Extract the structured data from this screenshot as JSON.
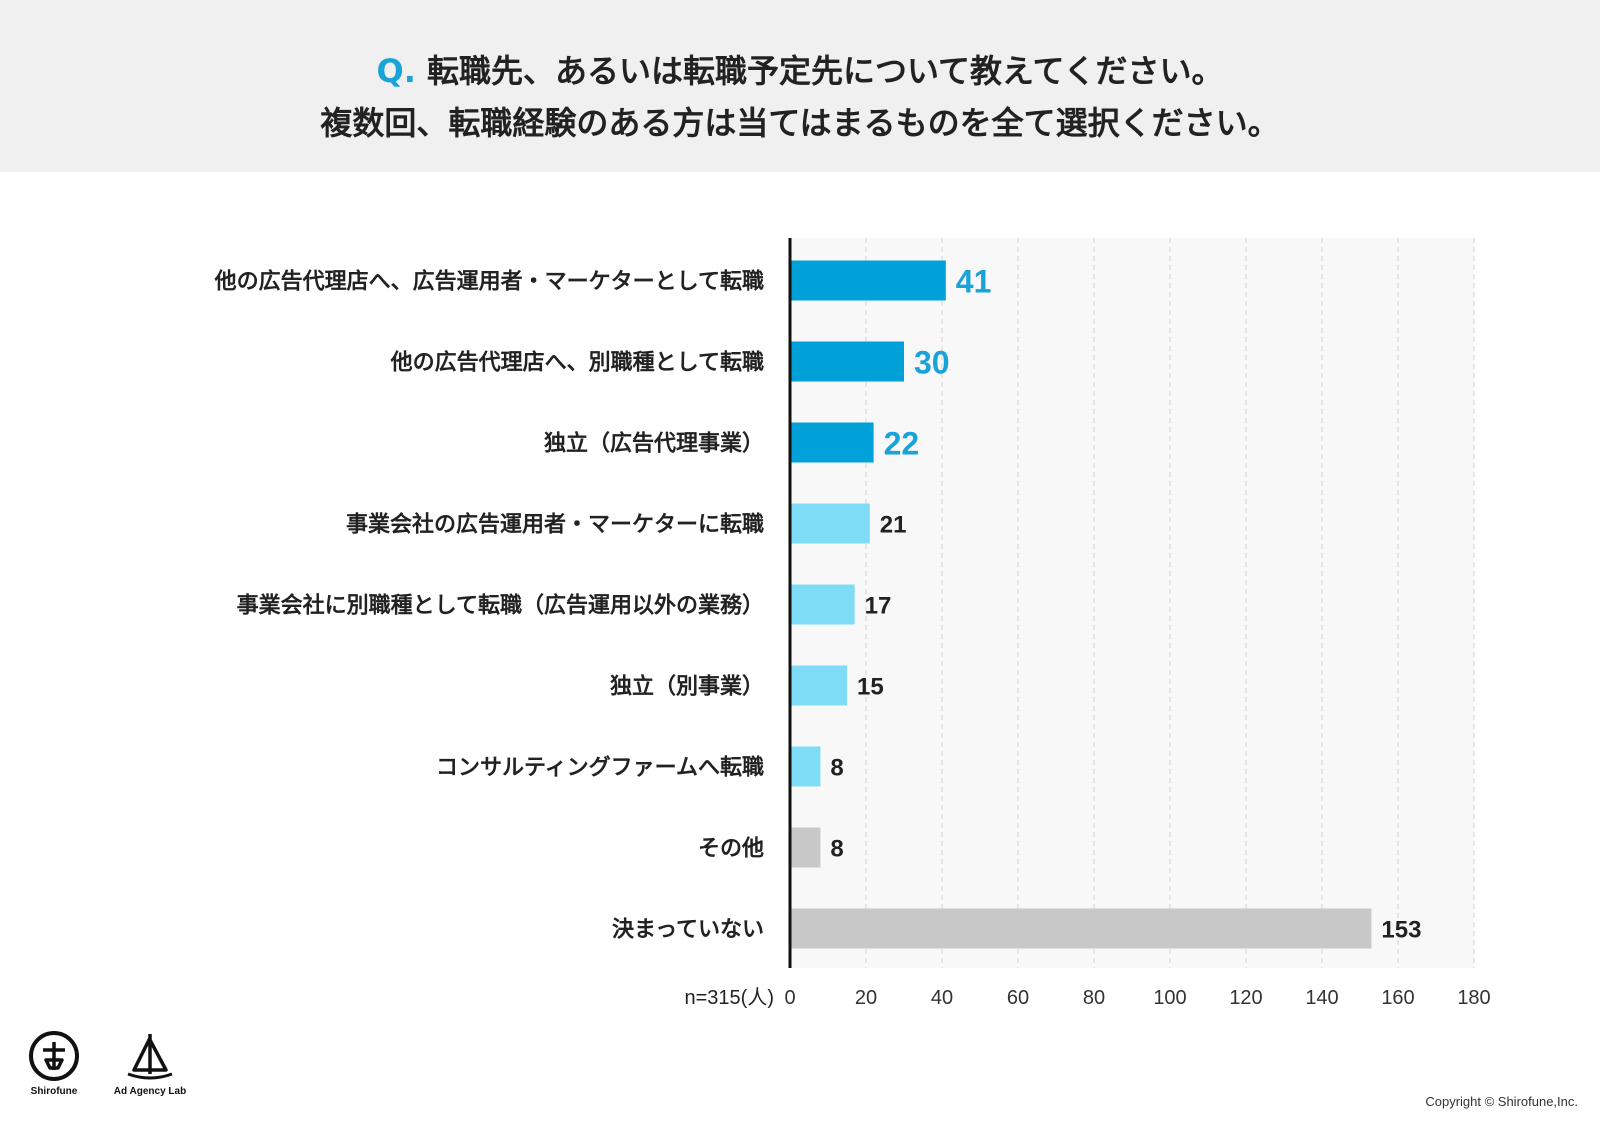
{
  "header": {
    "q_prefix": "Q.",
    "line1": "転職先、あるいは転職予定先について教えてください。",
    "line2": "複数回、転職経験のある方は当てはまるものを全て選択ください。"
  },
  "chart_data": {
    "type": "bar",
    "orientation": "horizontal",
    "categories": [
      "他の広告代理店へ、広告運用者・マーケターとして転職",
      "他の広告代理店へ、別職種として転職",
      "独立（広告代理事業）",
      "事業会社の広告運用者・マーケターに転職",
      "事業会社に別職種として転職（広告運用以外の業務）",
      "独立（別事業）",
      "コンサルティングファームへ転職",
      "その他",
      "決まっていない"
    ],
    "values": [
      41,
      30,
      22,
      21,
      17,
      15,
      8,
      8,
      153
    ],
    "bar_colors": [
      "#00a0d9",
      "#00a0d9",
      "#00a0d9",
      "#7fdcf6",
      "#7fdcf6",
      "#7fdcf6",
      "#7fdcf6",
      "#c8c8c8",
      "#c8c8c8"
    ],
    "highlight_label_color": "#1aa3d9",
    "xlim": [
      0,
      180
    ],
    "xticks": [
      0,
      20,
      40,
      60,
      80,
      100,
      120,
      140,
      160,
      180
    ],
    "n_label": "n=315(人)",
    "grid": true
  },
  "logos": {
    "left_caption": "Shirofune",
    "right_caption": "Ad Agency Lab"
  },
  "copyright": "Copyright © Shirofune,Inc."
}
